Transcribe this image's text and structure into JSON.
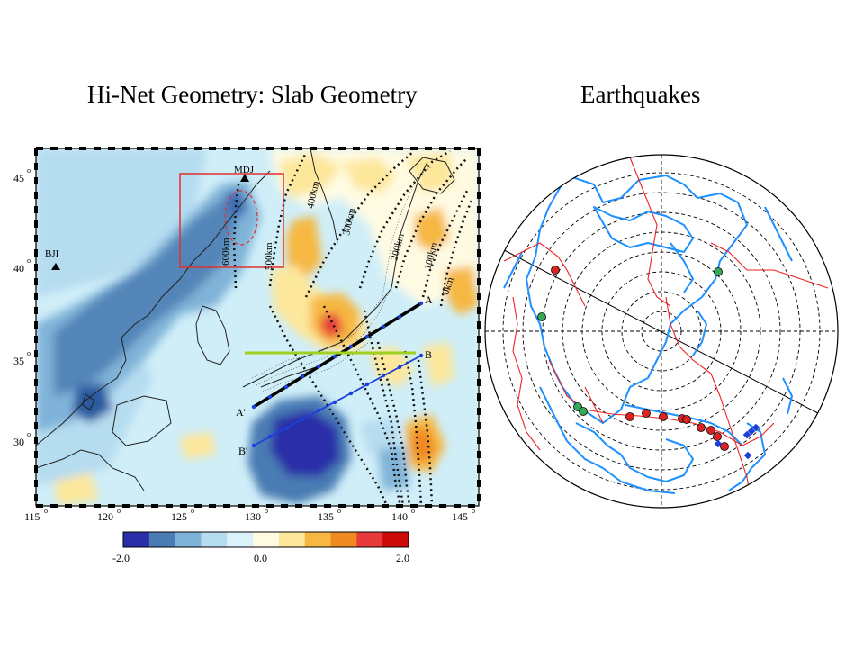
{
  "titles": {
    "left": "Hi-Net Geometry: Slab Geometry",
    "right": "Earthquakes"
  },
  "map": {
    "lon_ticks": [
      "115",
      "120",
      "125",
      "130",
      "135",
      "140",
      "145"
    ],
    "lat_ticks": [
      "45",
      "40",
      "35",
      "30"
    ],
    "degree_mark": "o",
    "stations": [
      {
        "code": "MDJ"
      },
      {
        "code": "BJI"
      }
    ],
    "depth_contours": [
      "600km",
      "500km",
      "400km",
      "300km",
      "200km",
      "100km",
      "0km"
    ],
    "profiles": [
      {
        "start": "A'",
        "end": "A"
      },
      {
        "start": "B'",
        "end": "B"
      }
    ],
    "colorbar": {
      "min_label": "-2.0",
      "mid_label": "0.0",
      "max_label": "2.0",
      "colors": [
        "#2a2fa8",
        "#4a7cb3",
        "#80b3d8",
        "#b6dcf0",
        "#dcf2fb",
        "#fffbe3",
        "#fde79b",
        "#f6b842",
        "#ef8a21",
        "#e83a3a",
        "#cc0a0a"
      ]
    }
  },
  "colors": {
    "coastline_blue": "#1e90ff",
    "plate_boundary_red": "#ee2222",
    "event_red": "#dd2222",
    "event_green": "#33aa55",
    "event_blue": "#1a3fdd",
    "slab_box_red": "#e03030",
    "green_profile": "#a0d020"
  },
  "events": {
    "red_count": 10,
    "green_count": 4,
    "blue_count": 5
  }
}
